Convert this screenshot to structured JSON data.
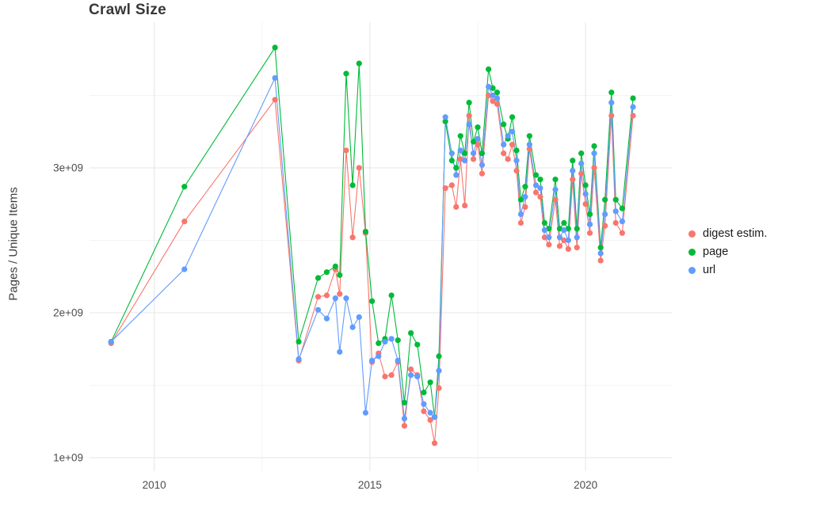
{
  "chart_data": {
    "type": "line",
    "title": "Crawl Size",
    "xlabel": "",
    "ylabel": "Pages / Unique Items",
    "value_unit": "1e9",
    "grid": true,
    "legend_position": "right",
    "x_axis": {
      "range": [
        2008.5,
        2022.0
      ],
      "ticks": [
        {
          "value": 2010,
          "label": "2010"
        },
        {
          "value": 2015,
          "label": "2015"
        },
        {
          "value": 2020,
          "label": "2020"
        }
      ],
      "minor": [
        2012.5,
        2017.5
      ]
    },
    "y_axis": {
      "range": [
        0.907,
        4.005
      ],
      "ticks": [
        {
          "value": 1,
          "label": "1e+09"
        },
        {
          "value": 2,
          "label": "2e+09"
        },
        {
          "value": 3,
          "label": "3e+09"
        }
      ],
      "minor": [
        1.5,
        2.5,
        3.5
      ]
    },
    "x": [
      2009.0,
      2010.7,
      2012.8,
      2013.35,
      2013.8,
      2014.0,
      2014.2,
      2014.3,
      2014.45,
      2014.6,
      2014.75,
      2014.9,
      2015.05,
      2015.2,
      2015.35,
      2015.5,
      2015.65,
      2015.8,
      2015.95,
      2016.1,
      2016.25,
      2016.4,
      2016.5,
      2016.6,
      2016.75,
      2016.9,
      2017.0,
      2017.1,
      2017.2,
      2017.3,
      2017.4,
      2017.5,
      2017.6,
      2017.75,
      2017.85,
      2017.95,
      2018.1,
      2018.2,
      2018.3,
      2018.4,
      2018.5,
      2018.6,
      2018.7,
      2018.85,
      2018.95,
      2019.05,
      2019.15,
      2019.3,
      2019.4,
      2019.5,
      2019.6,
      2019.7,
      2019.8,
      2019.9,
      2020.0,
      2020.1,
      2020.2,
      2020.35,
      2020.45,
      2020.6,
      2020.7,
      2020.85,
      2021.1
    ],
    "series": [
      {
        "name": "digest estim.",
        "color": "#F8766D",
        "values": [
          1.79,
          2.63,
          3.47,
          1.67,
          2.11,
          2.12,
          2.3,
          2.13,
          3.12,
          2.52,
          3.0,
          2.55,
          1.66,
          1.72,
          1.56,
          1.57,
          1.66,
          1.22,
          1.61,
          1.57,
          1.32,
          1.26,
          1.1,
          1.48,
          2.86,
          2.88,
          2.73,
          3.06,
          2.74,
          3.36,
          3.06,
          3.16,
          2.96,
          3.5,
          3.46,
          3.44,
          3.1,
          3.06,
          3.16,
          2.98,
          2.62,
          2.73,
          3.13,
          2.83,
          2.8,
          2.52,
          2.47,
          2.78,
          2.46,
          2.5,
          2.44,
          2.92,
          2.45,
          2.96,
          2.75,
          2.55,
          3.0,
          2.36,
          2.6,
          3.36,
          2.62,
          2.55,
          3.36
        ]
      },
      {
        "name": "page",
        "color": "#00BA38",
        "values": [
          1.8,
          2.87,
          3.83,
          1.8,
          2.24,
          2.28,
          2.32,
          2.26,
          3.65,
          2.88,
          3.72,
          2.56,
          2.08,
          1.79,
          1.82,
          2.12,
          1.81,
          1.38,
          1.86,
          1.78,
          1.45,
          1.52,
          1.28,
          1.7,
          3.32,
          3.05,
          3.0,
          3.22,
          3.1,
          3.45,
          3.18,
          3.28,
          3.1,
          3.68,
          3.55,
          3.52,
          3.3,
          3.2,
          3.35,
          3.12,
          2.78,
          2.87,
          3.22,
          2.95,
          2.92,
          2.62,
          2.58,
          2.92,
          2.58,
          2.62,
          2.58,
          3.05,
          2.58,
          3.1,
          2.88,
          2.68,
          3.15,
          2.45,
          2.78,
          3.52,
          2.78,
          2.72,
          3.48
        ]
      },
      {
        "name": "url",
        "color": "#619CFF",
        "values": [
          1.8,
          2.3,
          3.62,
          1.68,
          2.02,
          1.96,
          2.1,
          1.73,
          2.1,
          1.9,
          1.97,
          1.31,
          1.67,
          1.7,
          1.8,
          1.82,
          1.67,
          1.27,
          1.57,
          1.56,
          1.37,
          1.31,
          1.28,
          1.6,
          3.35,
          3.1,
          2.95,
          3.12,
          3.05,
          3.3,
          3.1,
          3.2,
          3.02,
          3.56,
          3.5,
          3.48,
          3.16,
          3.22,
          3.25,
          3.05,
          2.68,
          2.8,
          3.16,
          2.88,
          2.86,
          2.57,
          2.52,
          2.85,
          2.52,
          2.57,
          2.5,
          2.98,
          2.52,
          3.03,
          2.82,
          2.61,
          3.1,
          2.41,
          2.68,
          3.45,
          2.7,
          2.63,
          3.42
        ]
      }
    ]
  },
  "legend": {
    "items": [
      {
        "label": "digest estim.",
        "color": "#F8766D"
      },
      {
        "label": "page",
        "color": "#00BA38"
      },
      {
        "label": "url",
        "color": "#619CFF"
      }
    ]
  },
  "style": {
    "grid_major_color": "#e9e9e9",
    "grid_minor_color": "#f3f3f3",
    "tick_label_color": "#4d4d4d",
    "background": "#ffffff"
  }
}
